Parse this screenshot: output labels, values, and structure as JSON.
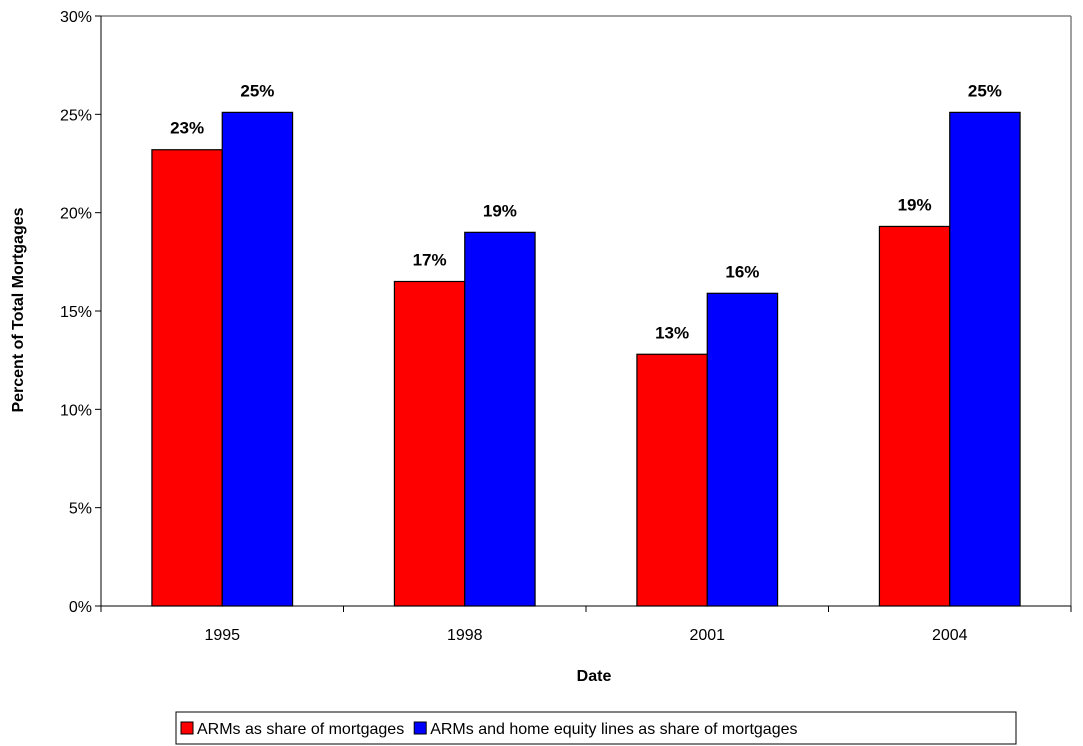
{
  "chart_data": {
    "type": "bar",
    "title": "",
    "xlabel": "Date",
    "ylabel": "Percent of Total Mortgages",
    "categories": [
      "1995",
      "1998",
      "2001",
      "2004"
    ],
    "series": [
      {
        "name": "ARMs as share of mortgages",
        "color": "#ff0000",
        "values": [
          23.2,
          16.5,
          12.8,
          19.3
        ],
        "labels": [
          "23%",
          "17%",
          "13%",
          "19%"
        ]
      },
      {
        "name": "ARMs and home equity lines as share of mortgages",
        "color": "#0000ff",
        "values": [
          25.1,
          19.0,
          15.9,
          25.1
        ],
        "labels": [
          "25%",
          "19%",
          "16%",
          "25%"
        ]
      }
    ],
    "ylim": [
      0,
      30
    ],
    "yticks": [
      0,
      5,
      10,
      15,
      20,
      25,
      30
    ],
    "ytick_labels": [
      "0%",
      "5%",
      "10%",
      "15%",
      "20%",
      "25%",
      "30%"
    ],
    "grid": false,
    "legend_position": "bottom"
  }
}
